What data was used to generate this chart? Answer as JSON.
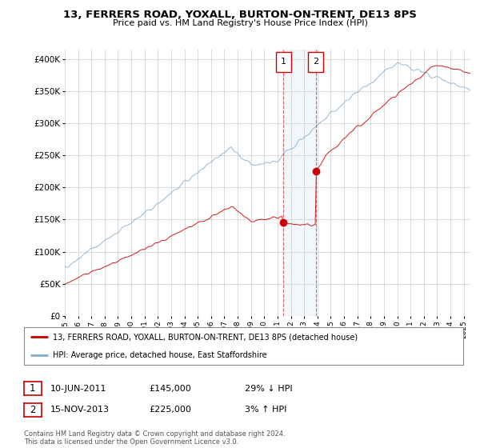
{
  "title": "13, FERRERS ROAD, YOXALL, BURTON-ON-TRENT, DE13 8PS",
  "subtitle": "Price paid vs. HM Land Registry's House Price Index (HPI)",
  "ylabel_ticks": [
    "£0",
    "£50K",
    "£100K",
    "£150K",
    "£200K",
    "£250K",
    "£300K",
    "£350K",
    "£400K"
  ],
  "ytick_vals": [
    0,
    50000,
    100000,
    150000,
    200000,
    250000,
    300000,
    350000,
    400000
  ],
  "ylim": [
    0,
    415000
  ],
  "xlim_start": 1995.0,
  "xlim_end": 2025.5,
  "line1_color": "#cc0000",
  "line2_color": "#7faacc",
  "sale1_x": 2011.44,
  "sale1_y": 145000,
  "sale2_x": 2013.88,
  "sale2_y": 225000,
  "legend_line1": "13, FERRERS ROAD, YOXALL, BURTON-ON-TRENT, DE13 8PS (detached house)",
  "legend_line2": "HPI: Average price, detached house, East Staffordshire",
  "table_row1": [
    "1",
    "10-JUN-2011",
    "£145,000",
    "29% ↓ HPI"
  ],
  "table_row2": [
    "2",
    "15-NOV-2013",
    "£225,000",
    "3% ↑ HPI"
  ],
  "footer": "Contains HM Land Registry data © Crown copyright and database right 2024.\nThis data is licensed under the Open Government Licence v3.0.",
  "background_color": "#ffffff",
  "grid_color": "#cccccc",
  "shade_color": "#ddeeff"
}
